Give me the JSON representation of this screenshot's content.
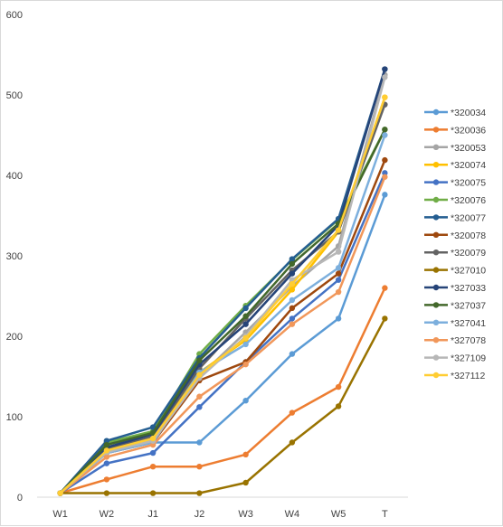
{
  "chart_data": {
    "type": "line",
    "categories": [
      "W1",
      "W2",
      "J1",
      "J2",
      "W3",
      "W4",
      "W5",
      "T"
    ],
    "ylim": [
      0,
      600
    ],
    "yticks": [
      0,
      100,
      200,
      300,
      400,
      500,
      600
    ],
    "grid": false,
    "legend_position": "right",
    "series": [
      {
        "name": "*320034",
        "color": "#5b9bd5",
        "values": [
          5,
          68,
          68,
          68,
          120,
          178,
          222,
          376
        ]
      },
      {
        "name": "*320036",
        "color": "#ed7d31",
        "values": [
          5,
          22,
          38,
          38,
          53,
          105,
          137,
          260
        ]
      },
      {
        "name": "*320053",
        "color": "#a5a5a5",
        "values": [
          5,
          58,
          72,
          150,
          205,
          262,
          312,
          525
        ]
      },
      {
        "name": "*320074",
        "color": "#ffc000",
        "values": [
          5,
          60,
          75,
          155,
          195,
          258,
          330,
          497
        ]
      },
      {
        "name": "*320075",
        "color": "#4472c4",
        "values": [
          5,
          42,
          55,
          112,
          168,
          222,
          270,
          403
        ]
      },
      {
        "name": "*320076",
        "color": "#70ad47",
        "values": [
          5,
          68,
          82,
          178,
          238,
          295,
          345,
          457
        ]
      },
      {
        "name": "*320077",
        "color": "#255e91",
        "values": [
          5,
          70,
          87,
          173,
          235,
          296,
          346,
          532
        ]
      },
      {
        "name": "*320078",
        "color": "#9e480e",
        "values": [
          5,
          55,
          68,
          145,
          168,
          235,
          278,
          419
        ]
      },
      {
        "name": "*320079",
        "color": "#636363",
        "values": [
          5,
          60,
          75,
          160,
          222,
          282,
          330,
          488
        ]
      },
      {
        "name": "*327010",
        "color": "#997300",
        "values": [
          5,
          5,
          5,
          5,
          18,
          68,
          113,
          222
        ]
      },
      {
        "name": "*327033",
        "color": "#264478",
        "values": [
          5,
          62,
          78,
          165,
          215,
          278,
          338,
          532
        ]
      },
      {
        "name": "*327037",
        "color": "#43682b",
        "values": [
          5,
          65,
          80,
          170,
          225,
          290,
          340,
          457
        ]
      },
      {
        "name": "*327041",
        "color": "#7cafdd",
        "values": [
          5,
          55,
          68,
          155,
          190,
          245,
          285,
          450
        ]
      },
      {
        "name": "*327078",
        "color": "#f1975a",
        "values": [
          5,
          50,
          65,
          125,
          165,
          215,
          255,
          398
        ]
      },
      {
        "name": "*327109",
        "color": "#b7b7b7",
        "values": [
          5,
          56,
          70,
          148,
          200,
          270,
          305,
          522
        ]
      },
      {
        "name": "*327112",
        "color": "#ffcd33",
        "values": [
          5,
          58,
          73,
          152,
          198,
          265,
          332,
          497
        ]
      }
    ]
  }
}
